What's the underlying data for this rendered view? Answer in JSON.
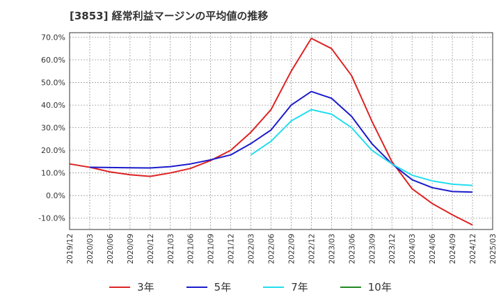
{
  "title": "[3853]  経常利益マージンの平均値の推移",
  "chart_data": {
    "type": "line",
    "x": [
      "2019/12",
      "2020/03",
      "2020/06",
      "2020/09",
      "2020/12",
      "2021/03",
      "2021/06",
      "2021/09",
      "2021/12",
      "2022/03",
      "2022/06",
      "2022/09",
      "2022/12",
      "2023/03",
      "2023/06",
      "2023/09",
      "2023/12",
      "2024/03",
      "2024/06",
      "2024/09",
      "2024/12",
      "2025/03"
    ],
    "ylim": [
      -15,
      72
    ],
    "yticks": [
      -10,
      0,
      10,
      20,
      30,
      40,
      50,
      60,
      70
    ],
    "ytick_labels": [
      "-10.0%",
      "0.0%",
      "10.0%",
      "20.0%",
      "30.0%",
      "40.0%",
      "50.0%",
      "60.0%",
      "70.0%"
    ],
    "grid": true,
    "legend_position": "bottom",
    "series": [
      {
        "name": "3年",
        "color": "#dd2222",
        "points": [
          [
            0,
            14.0
          ],
          [
            1,
            12.5
          ],
          [
            2,
            10.5
          ],
          [
            3,
            9.2
          ],
          [
            4,
            8.5
          ],
          [
            5,
            10.0
          ],
          [
            6,
            12.0
          ],
          [
            7,
            15.5
          ],
          [
            8,
            20.0
          ],
          [
            9,
            28.0
          ],
          [
            10,
            38.0
          ],
          [
            11,
            55.0
          ],
          [
            12,
            69.5
          ],
          [
            13,
            65.0
          ],
          [
            14,
            53.0
          ],
          [
            15,
            33.0
          ],
          [
            16,
            15.0
          ],
          [
            17,
            3.0
          ],
          [
            18,
            -3.5
          ],
          [
            19,
            -8.5
          ],
          [
            20,
            -13.0
          ]
        ]
      },
      {
        "name": "5年",
        "color": "#1a1acc",
        "points": [
          [
            1,
            12.5
          ],
          [
            2,
            12.4
          ],
          [
            3,
            12.3
          ],
          [
            4,
            12.2
          ],
          [
            5,
            12.8
          ],
          [
            6,
            14.0
          ],
          [
            7,
            15.8
          ],
          [
            8,
            18.0
          ],
          [
            9,
            23.0
          ],
          [
            10,
            29.0
          ],
          [
            11,
            40.0
          ],
          [
            12,
            46.0
          ],
          [
            13,
            43.0
          ],
          [
            14,
            35.0
          ],
          [
            15,
            23.0
          ],
          [
            16,
            14.0
          ],
          [
            17,
            7.0
          ],
          [
            18,
            3.5
          ],
          [
            19,
            1.8
          ],
          [
            20,
            1.5
          ]
        ]
      },
      {
        "name": "7年",
        "color": "#22ddee",
        "points": [
          [
            9,
            18.0
          ],
          [
            10,
            24.0
          ],
          [
            11,
            33.0
          ],
          [
            12,
            38.0
          ],
          [
            13,
            36.0
          ],
          [
            14,
            30.0
          ],
          [
            15,
            20.0
          ],
          [
            16,
            14.0
          ],
          [
            17,
            9.0
          ],
          [
            18,
            6.5
          ],
          [
            19,
            5.0
          ],
          [
            20,
            4.5
          ]
        ]
      },
      {
        "name": "10年",
        "color": "#228822",
        "points": []
      }
    ]
  }
}
